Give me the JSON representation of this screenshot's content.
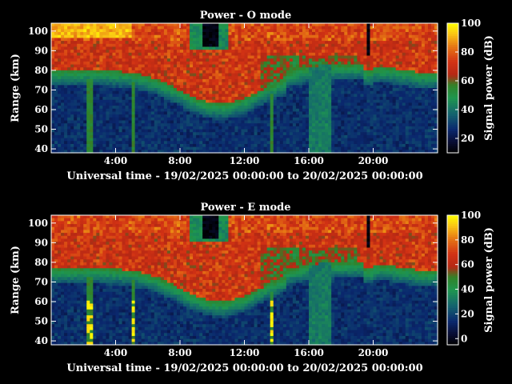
{
  "chart_data": [
    {
      "type": "heatmap",
      "title": "Power - O mode",
      "xlabel": "Universal time - 19/02/2025 00:00:00 to 20/02/2025 00:00:00",
      "ylabel": "Range (km)",
      "colorbar_label": "Signal power (dB)",
      "x_ticks": [
        "4:00",
        "8:00",
        "12:00",
        "16:00",
        "20:00"
      ],
      "y_ticks": [
        "40",
        "50",
        "60",
        "70",
        "80",
        "90",
        "100"
      ],
      "colorbar_ticks": [
        "20",
        "40",
        "60",
        "80",
        "100"
      ],
      "colorbar_range": [
        10,
        100
      ],
      "xlim_hours": [
        0,
        24
      ],
      "ylim_km": [
        38,
        104
      ],
      "colormap": "black-blue-green-red-yellow",
      "mode": "O"
    },
    {
      "type": "heatmap",
      "title": "Power - E mode",
      "xlabel": "Universal time - 19/02/2025 00:00:00 to 20/02/2025 00:00:00",
      "ylabel": "Range (km)",
      "colorbar_label": "Signal power (dB)",
      "x_ticks": [
        "4:00",
        "8:00",
        "12:00",
        "16:00",
        "20:00"
      ],
      "y_ticks": [
        "40",
        "50",
        "60",
        "70",
        "80",
        "90",
        "100"
      ],
      "colorbar_ticks": [
        "0",
        "20",
        "40",
        "60",
        "80",
        "100"
      ],
      "colorbar_range": [
        -5,
        100
      ],
      "xlim_hours": [
        0,
        24
      ],
      "ylim_km": [
        38,
        104
      ],
      "colormap": "black-blue-green-red-yellow",
      "mode": "E"
    }
  ]
}
